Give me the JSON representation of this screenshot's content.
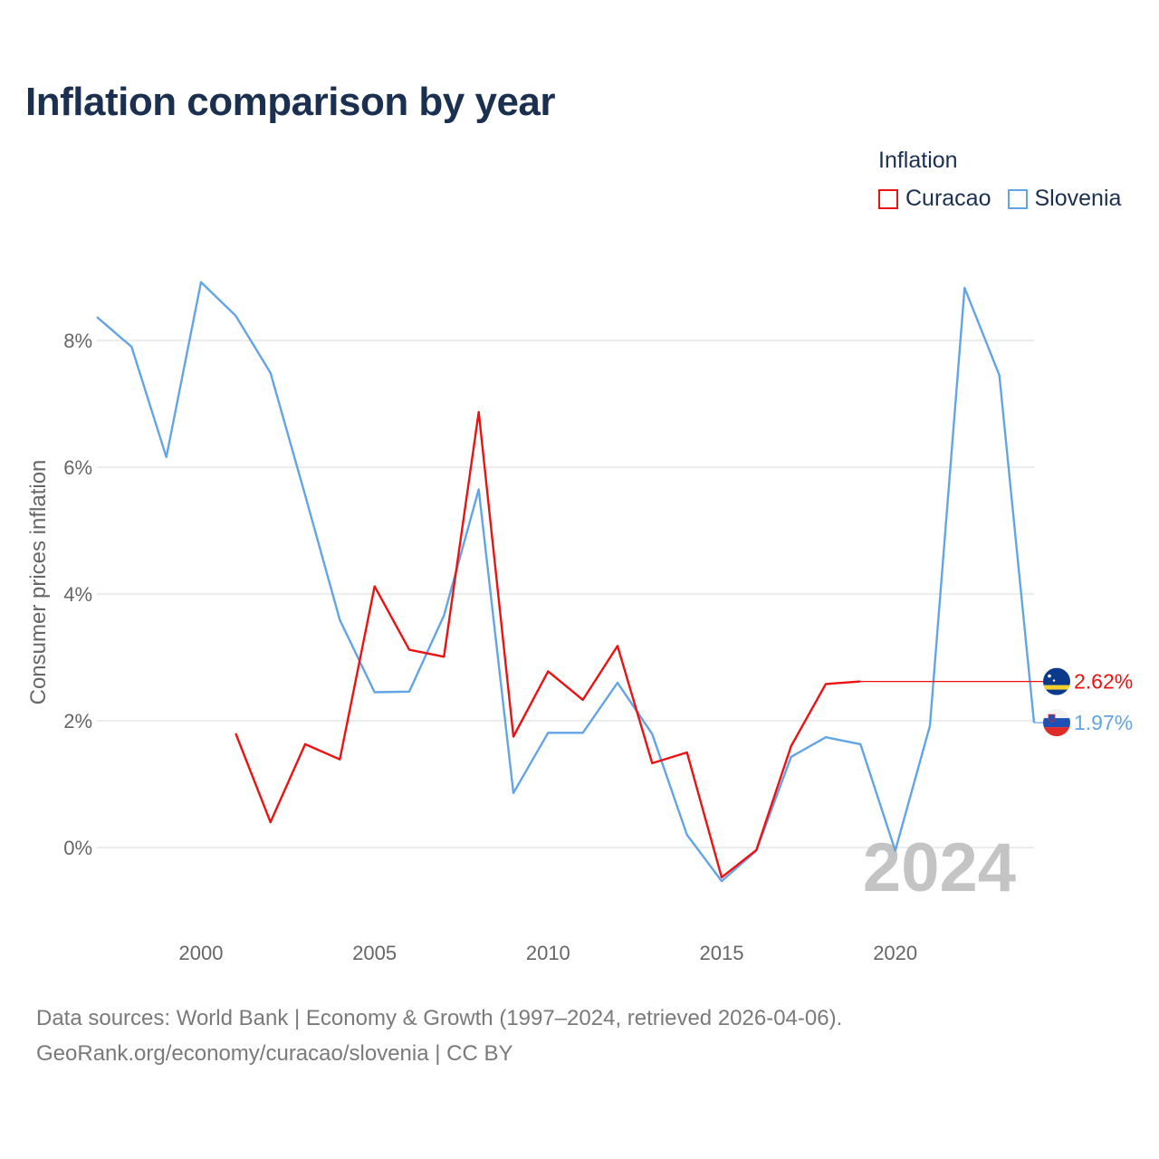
{
  "title": "Inflation comparison by year",
  "legend": {
    "title": "Inflation",
    "items": [
      {
        "label": "Curacao",
        "color": "#ee1111"
      },
      {
        "label": "Slovenia",
        "color": "#63a4e6"
      }
    ]
  },
  "source": {
    "line1": "Data sources: World Bank | Economy & Growth (1997–2024, retrieved 2026-04-06).",
    "line2": "GeoRank.org/economy/curacao/slovenia | CC BY"
  },
  "chart_data": {
    "type": "line",
    "title": "Inflation comparison by year",
    "xlabel": "",
    "ylabel": "Consumer prices inflation",
    "xlim": [
      1997,
      2024
    ],
    "ylim": [
      -1.1,
      9.3
    ],
    "x_ticks": [
      2000,
      2005,
      2010,
      2015,
      2020
    ],
    "y_ticks": [
      0,
      2,
      4,
      6,
      8
    ],
    "y_tick_labels": [
      "0%",
      "2%",
      "4%",
      "6%",
      "8%"
    ],
    "grid": true,
    "legend_position": "top-right",
    "current_year": "2024",
    "series": [
      {
        "name": "Curacao",
        "color": "#ee1111",
        "flag": "curacao-flag",
        "end_label": "2.62%",
        "end_value": 2.62,
        "x": [
          2001,
          2002,
          2003,
          2004,
          2005,
          2006,
          2007,
          2008,
          2009,
          2010,
          2011,
          2012,
          2013,
          2014,
          2015,
          2016,
          2017,
          2018,
          2019
        ],
        "values": [
          1.8,
          0.4,
          1.63,
          1.39,
          4.12,
          3.12,
          3.01,
          6.87,
          1.75,
          2.78,
          2.33,
          3.18,
          1.33,
          1.5,
          -0.47,
          -0.04,
          1.6,
          2.58,
          2.62
        ]
      },
      {
        "name": "Slovenia",
        "color": "#63a4e6",
        "flag": "slovenia-flag",
        "end_label": "1.97%",
        "end_value": 1.97,
        "x": [
          1997,
          1998,
          1999,
          2000,
          2001,
          2002,
          2003,
          2004,
          2005,
          2006,
          2007,
          2008,
          2009,
          2010,
          2011,
          2012,
          2013,
          2014,
          2015,
          2016,
          2017,
          2018,
          2019,
          2020,
          2021,
          2022,
          2023,
          2024
        ],
        "values": [
          8.37,
          7.9,
          6.16,
          8.92,
          8.39,
          7.49,
          5.56,
          3.59,
          2.45,
          2.46,
          3.66,
          5.65,
          0.86,
          1.81,
          1.81,
          2.6,
          1.79,
          0.2,
          -0.53,
          -0.05,
          1.43,
          1.74,
          1.63,
          -0.05,
          1.92,
          8.83,
          7.45,
          1.97
        ]
      }
    ]
  }
}
